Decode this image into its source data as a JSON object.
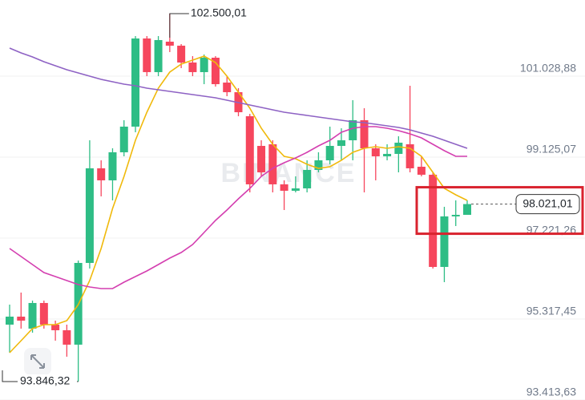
{
  "chart_data": {
    "type": "candlestick",
    "watermark": "BINANCE",
    "up_color": "#2ebd85",
    "down_color": "#f6465d",
    "open": [
      95186,
      95374,
      95092,
      95695,
      95186,
      95054,
      94715,
      96637,
      98862,
      98579,
      99239,
      99842,
      101915,
      101124,
      101840,
      101746,
      101350,
      101124,
      101463,
      100878,
      100652,
      100087,
      99389,
      99427,
      98485,
      98334,
      98390,
      98824,
      99050,
      99389,
      99521,
      99993,
      99333,
      99144,
      99201,
      99427,
      98899,
      98711,
      96543,
      97731,
      97768
    ],
    "high": [
      95657,
      95940,
      95751,
      95751,
      95280,
      95186,
      96694,
      99521,
      99050,
      99333,
      99993,
      101972,
      101972,
      101972,
      102500.01,
      101783,
      101500,
      101538,
      101500,
      101029,
      100747,
      100143,
      99521,
      99521,
      98579,
      98673,
      99050,
      99239,
      99842,
      99804,
      100464,
      100275,
      99427,
      99427,
      99616,
      100803,
      99144,
      98767,
      97957,
      98108,
      98108
    ],
    "low": [
      94526,
      95092,
      94997,
      95092,
      94809,
      94432,
      93846.32,
      96505,
      98202,
      98108,
      99144,
      99710,
      101029,
      101029,
      101595,
      101218,
      101029,
      100841,
      100784,
      100558,
      100087,
      98296,
      98673,
      98296,
      97881,
      98296,
      98296,
      98767,
      98956,
      99050,
      99050,
      98296,
      98579,
      99050,
      98767,
      98767,
      98673,
      96505,
      96185,
      97504,
      97768
    ],
    "close": [
      95374,
      95280,
      95695,
      95186,
      95054,
      94715,
      96637,
      98862,
      98579,
      99239,
      99842,
      101915,
      101124,
      101878,
      101746,
      101350,
      101124,
      101463,
      100841,
      100652,
      100181,
      98485,
      98767,
      98485,
      98334,
      98390,
      98824,
      99050,
      99389,
      99521,
      99993,
      99333,
      99144,
      99201,
      99465,
      98862,
      98711,
      96543,
      97731,
      97768,
      98021.01
    ],
    "series": [
      {
        "color": "#f0b90b",
        "values": [
          94526,
          94809,
          95092,
          95186,
          95186,
          95280,
          95657,
          96222,
          96976,
          97919,
          98673,
          99521,
          100181,
          100747,
          101124,
          101312,
          101406,
          101500,
          101350,
          101029,
          100652,
          100275,
          99804,
          99427,
          99144,
          99088,
          98956,
          98862,
          98899,
          99050,
          99239,
          99333,
          99370,
          99333,
          99370,
          99333,
          99144,
          98767,
          98390,
          98240,
          98108
        ]
      },
      {
        "color": "#d43fb0",
        "values": [
          96976,
          96788,
          96600,
          96411,
          96317,
          96222,
          96128,
          96072,
          96034,
          96034,
          96185,
          96317,
          96449,
          96600,
          96750,
          96882,
          97071,
          97354,
          97636,
          97881,
          98145,
          98390,
          98673,
          98862,
          98994,
          99107,
          99239,
          99389,
          99521,
          99710,
          99804,
          99842,
          99842,
          99804,
          99748,
          99672,
          99578,
          99427,
          99276,
          99144,
          99144
        ]
      },
      {
        "color": "#8e62c4",
        "values": [
          101689,
          101576,
          101482,
          101369,
          101274,
          101180,
          101105,
          101029,
          100954,
          100897,
          100841,
          100803,
          100747,
          100709,
          100671,
          100634,
          100596,
          100558,
          100520,
          100464,
          100407,
          100351,
          100294,
          100238,
          100181,
          100143,
          100106,
          100068,
          100030,
          99993,
          99955,
          99936,
          99898,
          99861,
          99823,
          99766,
          99691,
          99616,
          99521,
          99427,
          99333
        ]
      }
    ],
    "high_label": {
      "value": 102500.01,
      "label": "102.500,01"
    },
    "low_label": {
      "value": 93846.32,
      "label": "93.846,32"
    },
    "price_label": {
      "value": 98021.01,
      "label": "98.021,01"
    },
    "ylim": [
      93413.63,
      102820
    ],
    "yticks": [
      {
        "value": 93413.63,
        "label": "93.413,63"
      },
      {
        "value": 95317.45,
        "label": "95.317,45"
      },
      {
        "value": 97221.26,
        "label": "97.221,26"
      },
      {
        "value": 99125.07,
        "label": "99.125,07"
      },
      {
        "value": 101028.88,
        "label": "101.028,88"
      }
    ],
    "grid": true
  }
}
